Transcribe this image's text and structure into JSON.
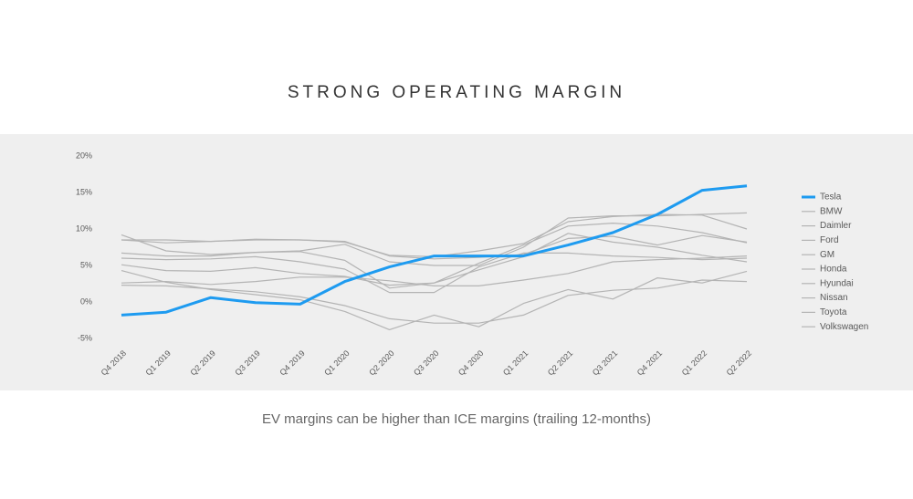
{
  "title": "STRONG OPERATING MARGIN",
  "caption": "EV margins can be higher than ICE margins (trailing 12-months)",
  "chart_data": {
    "type": "line",
    "categories": [
      "Q4 2018",
      "Q1 2019",
      "Q2 2019",
      "Q3 2019",
      "Q4 2019",
      "Q1 2020",
      "Q2 2020",
      "Q3 2020",
      "Q4 2020",
      "Q1 2021",
      "Q2 2021",
      "Q3 2021",
      "Q4 2021",
      "Q1 2022",
      "Q2 2022"
    ],
    "ylim": [
      -5,
      20
    ],
    "yticks": [
      {
        "value": 20,
        "label": "20%"
      },
      {
        "value": 15,
        "label": "15%"
      },
      {
        "value": 10,
        "label": "10%"
      },
      {
        "value": 5,
        "label": "5%"
      },
      {
        "value": 0,
        "label": "0%"
      },
      {
        "value": -5,
        "label": "-5%"
      }
    ],
    "legend": "right",
    "series": [
      {
        "name": "Tesla",
        "color": "#1e9bf0",
        "values": [
          -1.8,
          -1.4,
          0.6,
          -0.1,
          -0.3,
          2.8,
          4.8,
          6.3,
          6.3,
          6.3,
          7.8,
          9.5,
          12.0,
          15.3,
          15.9
        ]
      },
      {
        "name": "BMW",
        "color": "#b4b4b4",
        "values": [
          9.2,
          7.0,
          6.5,
          6.8,
          7.0,
          7.9,
          5.5,
          5.0,
          5.0,
          7.5,
          11.5,
          11.8,
          11.8,
          12.0,
          12.2
        ]
      },
      {
        "name": "Daimler",
        "color": "#b4b4b4",
        "values": [
          8.5,
          8.1,
          8.3,
          8.5,
          8.5,
          8.2,
          6.4,
          6.2,
          7.0,
          8.0,
          11.0,
          11.7,
          12.0,
          11.9,
          10.0
        ]
      },
      {
        "name": "Ford",
        "color": "#b4b4b4",
        "values": [
          4.3,
          2.7,
          1.7,
          1.0,
          0.3,
          -1.3,
          -3.8,
          -1.8,
          -3.4,
          -0.2,
          1.7,
          0.4,
          3.3,
          2.6,
          4.2
        ]
      },
      {
        "name": "GM",
        "color": "#b4b4b4",
        "values": [
          6.7,
          6.3,
          6.3,
          6.8,
          6.9,
          5.7,
          1.9,
          2.6,
          5.3,
          7.8,
          10.4,
          10.8,
          10.4,
          9.5,
          8.1
        ]
      },
      {
        "name": "Honda",
        "color": "#b4b4b4",
        "values": [
          5.1,
          4.3,
          4.2,
          4.7,
          3.9,
          3.5,
          2.3,
          2.6,
          4.4,
          6.2,
          9.4,
          8.2,
          7.5,
          6.4,
          5.5
        ]
      },
      {
        "name": "Hyundai",
        "color": "#b4b4b4",
        "values": [
          2.6,
          2.8,
          2.4,
          2.8,
          3.4,
          3.4,
          2.9,
          2.2,
          2.2,
          3.0,
          3.9,
          5.5,
          5.8,
          6.0,
          6.3
        ]
      },
      {
        "name": "Nissan",
        "color": "#b4b4b4",
        "values": [
          2.3,
          2.2,
          1.8,
          1.4,
          0.7,
          -0.5,
          -2.3,
          -2.9,
          -2.9,
          -1.8,
          0.9,
          1.6,
          1.9,
          3.0,
          2.8
        ]
      },
      {
        "name": "Toyota",
        "color": "#b4b4b4",
        "values": [
          8.5,
          8.5,
          8.3,
          8.6,
          8.5,
          8.3,
          6.3,
          5.9,
          6.1,
          6.5,
          8.7,
          9.0,
          7.8,
          9.1,
          8.2
        ]
      },
      {
        "name": "Volkswagen",
        "color": "#b4b4b4",
        "values": [
          6.0,
          5.8,
          5.9,
          6.2,
          5.5,
          4.5,
          1.3,
          1.3,
          4.8,
          6.7,
          6.7,
          6.3,
          6.1,
          5.8,
          6.0
        ]
      }
    ]
  }
}
